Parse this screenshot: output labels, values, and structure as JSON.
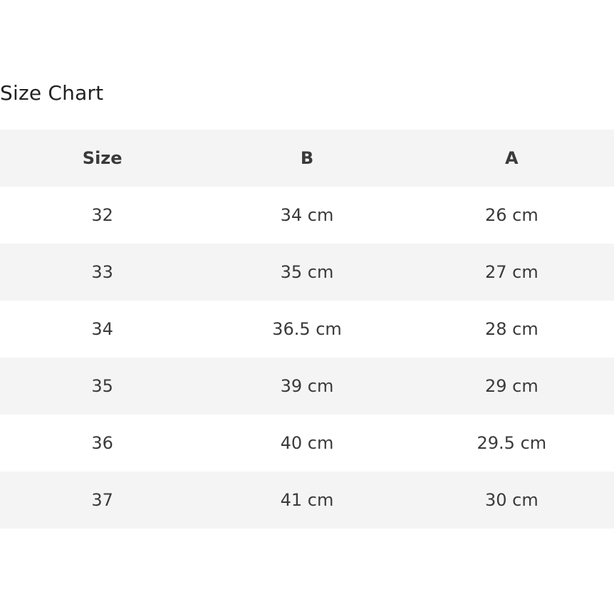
{
  "title": "Size Chart",
  "headers": [
    "Size",
    "B",
    "A"
  ],
  "rows": [
    [
      "32",
      "34 cm",
      "26 cm"
    ],
    [
      "33",
      "35 cm",
      "27 cm"
    ],
    [
      "34",
      "36.5 cm",
      "28 cm"
    ],
    [
      "35",
      "39 cm",
      "29 cm"
    ],
    [
      "36",
      "40 cm",
      "29.5 cm"
    ],
    [
      "37",
      "41 cm",
      "30 cm"
    ]
  ]
}
